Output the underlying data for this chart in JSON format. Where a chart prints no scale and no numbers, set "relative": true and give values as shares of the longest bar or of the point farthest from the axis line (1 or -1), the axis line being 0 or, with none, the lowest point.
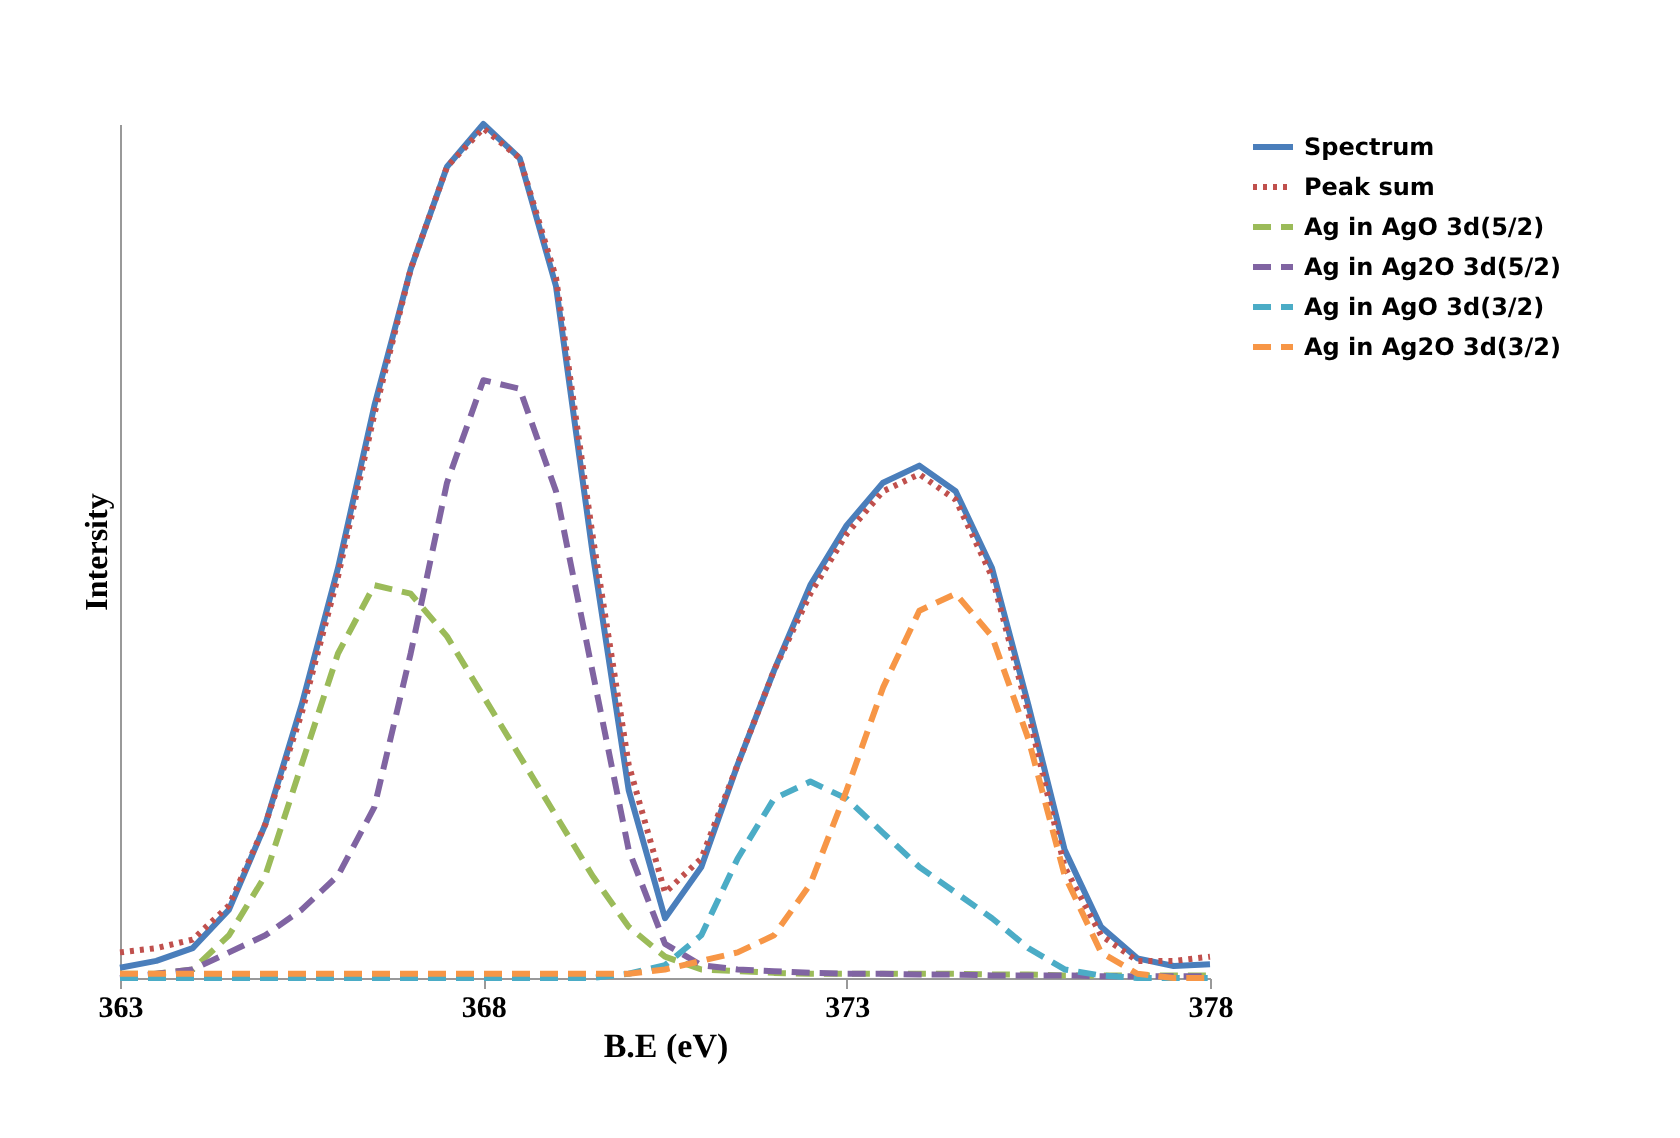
{
  "chart_data": {
    "type": "line",
    "relative": true,
    "xlabel": "B.E (eV)",
    "ylabel": "Intersity",
    "x": [
      363,
      363.5,
      364,
      364.5,
      365,
      365.5,
      366,
      366.5,
      367,
      367.5,
      368,
      368.5,
      369,
      369.5,
      370,
      370.5,
      371,
      371.5,
      372,
      372.5,
      373,
      373.5,
      374,
      374.5,
      375,
      375.5,
      376,
      376.5,
      377,
      377.5,
      378
    ],
    "xlim": [
      363,
      378
    ],
    "xticks": [
      363,
      368,
      373,
      378
    ],
    "tick_labels": "x",
    "grid": false,
    "legend": "right",
    "marker": "none",
    "series": [
      {
        "name": "Spectrum",
        "color": "#4a7ebb",
        "line_style": "solid",
        "values": [
          0.012,
          0.02,
          0.035,
          0.08,
          0.18,
          0.32,
          0.48,
          0.67,
          0.83,
          0.95,
          1.0,
          0.96,
          0.81,
          0.5,
          0.22,
          0.07,
          0.13,
          0.25,
          0.36,
          0.46,
          0.53,
          0.58,
          0.6,
          0.57,
          0.48,
          0.32,
          0.15,
          0.06,
          0.023,
          0.014,
          0.016
        ]
      },
      {
        "name": "Peak sum",
        "color": "#c0504d",
        "line_style": "dotted",
        "values": [
          0.03,
          0.035,
          0.045,
          0.085,
          0.18,
          0.31,
          0.47,
          0.66,
          0.83,
          0.95,
          0.995,
          0.96,
          0.82,
          0.52,
          0.25,
          0.1,
          0.14,
          0.25,
          0.36,
          0.45,
          0.52,
          0.57,
          0.59,
          0.56,
          0.47,
          0.31,
          0.13,
          0.05,
          0.02,
          0.02,
          0.025
        ]
      },
      {
        "name": "Ag in AgO 3d(5/2)",
        "color": "#9bbb59",
        "line_style": "dashed",
        "values": [
          0.005,
          0.005,
          0.01,
          0.05,
          0.12,
          0.25,
          0.38,
          0.46,
          0.45,
          0.4,
          0.33,
          0.26,
          0.19,
          0.12,
          0.06,
          0.025,
          0.01,
          0.008,
          0.006,
          0.005,
          0.005,
          0.005,
          0.005,
          0.005,
          0.004,
          0.004,
          0.003,
          0.003,
          0.003,
          0.003,
          0.003
        ]
      },
      {
        "name": "Ag in Ag2O 3d(5/2)",
        "color": "#8064a2",
        "line_style": "dashed",
        "values": [
          0,
          0.005,
          0.01,
          0.03,
          0.05,
          0.08,
          0.12,
          0.2,
          0.38,
          0.58,
          0.7,
          0.69,
          0.57,
          0.36,
          0.15,
          0.04,
          0.015,
          0.01,
          0.008,
          0.006,
          0.005,
          0.005,
          0.004,
          0.004,
          0.003,
          0.003,
          0.003,
          0.002,
          0.002,
          0.002,
          0.002
        ]
      },
      {
        "name": "Ag in AgO 3d(3/2)",
        "color": "#4bacc6",
        "line_style": "dashed",
        "values": [
          0,
          0,
          0,
          0,
          0,
          0,
          0,
          0,
          0,
          0,
          0,
          0,
          0,
          0,
          0.005,
          0.015,
          0.05,
          0.14,
          0.21,
          0.23,
          0.21,
          0.17,
          0.13,
          0.1,
          0.07,
          0.035,
          0.01,
          0.003,
          0,
          0,
          0
        ]
      },
      {
        "name": "Ag in Ag2O 3d(3/2)",
        "color": "#f79646",
        "line_style": "dashed",
        "values": [
          0.005,
          0.005,
          0.005,
          0.005,
          0.005,
          0.005,
          0.005,
          0.005,
          0.005,
          0.005,
          0.005,
          0.005,
          0.005,
          0.005,
          0.005,
          0.01,
          0.02,
          0.03,
          0.05,
          0.11,
          0.22,
          0.34,
          0.43,
          0.45,
          0.4,
          0.28,
          0.12,
          0.03,
          0.005,
          0,
          0
        ]
      }
    ]
  }
}
